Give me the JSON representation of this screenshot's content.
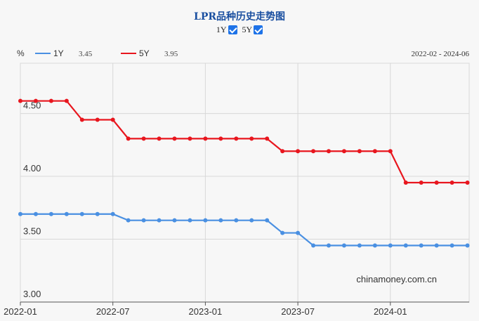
{
  "header": {
    "title": "LPR品种历史走势图",
    "toggles": [
      {
        "label": "1Y",
        "checked": true
      },
      {
        "label": "5Y",
        "checked": true
      }
    ],
    "unit": "%",
    "date_range": "2022-02 - 2024-06",
    "watermark": "chinamoney.com.cn"
  },
  "chart_data": {
    "type": "line",
    "x": [
      "2022-01",
      "2022-02",
      "2022-03",
      "2022-04",
      "2022-05",
      "2022-06",
      "2022-07",
      "2022-08",
      "2022-09",
      "2022-10",
      "2022-11",
      "2022-12",
      "2023-01",
      "2023-02",
      "2023-03",
      "2023-04",
      "2023-05",
      "2023-06",
      "2023-07",
      "2023-08",
      "2023-09",
      "2023-10",
      "2023-11",
      "2023-12",
      "2024-01",
      "2024-02",
      "2024-03",
      "2024-04",
      "2024-05",
      "2024-06"
    ],
    "x_ticks": [
      "2022-01",
      "2022-07",
      "2023-01",
      "2023-07",
      "2024-01"
    ],
    "ylim": [
      3.0,
      4.9
    ],
    "y_ticks": [
      "3.00",
      "3.50",
      "4.00",
      "4.50"
    ],
    "grid": true,
    "legend_position": "top-left",
    "series": [
      {
        "name": "1Y",
        "latest": "3.45",
        "color": "#4a90e2",
        "values": [
          3.7,
          3.7,
          3.7,
          3.7,
          3.7,
          3.7,
          3.7,
          3.65,
          3.65,
          3.65,
          3.65,
          3.65,
          3.65,
          3.65,
          3.65,
          3.65,
          3.65,
          3.55,
          3.55,
          3.45,
          3.45,
          3.45,
          3.45,
          3.45,
          3.45,
          3.45,
          3.45,
          3.45,
          3.45,
          3.45
        ]
      },
      {
        "name": "5Y",
        "latest": "3.95",
        "color": "#e8161e",
        "values": [
          4.6,
          4.6,
          4.6,
          4.6,
          4.45,
          4.45,
          4.45,
          4.3,
          4.3,
          4.3,
          4.3,
          4.3,
          4.3,
          4.3,
          4.3,
          4.3,
          4.3,
          4.2,
          4.2,
          4.2,
          4.2,
          4.2,
          4.2,
          4.2,
          4.2,
          3.95,
          3.95,
          3.95,
          3.95,
          3.95
        ]
      }
    ]
  }
}
